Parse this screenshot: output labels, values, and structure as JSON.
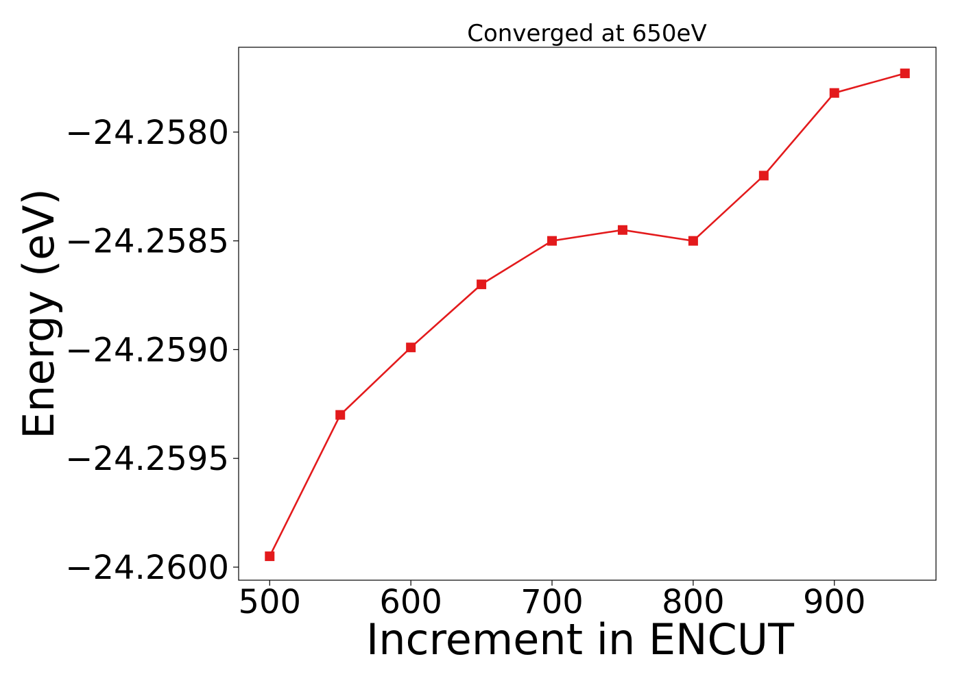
{
  "chart_data": {
    "type": "line",
    "title": "Converged at 650eV",
    "xlabel": "Increment in ENCUT",
    "ylabel": "Energy (eV)",
    "xlim": [
      478,
      972
    ],
    "ylim": [
      -24.26006,
      -24.25761
    ],
    "x_ticks": [
      500,
      600,
      700,
      800,
      900
    ],
    "x_tick_labels": [
      "500",
      "600",
      "700",
      "800",
      "900"
    ],
    "y_ticks": [
      -24.258,
      -24.2585,
      -24.259,
      -24.2595,
      -24.26
    ],
    "y_tick_labels": [
      "−24.2580",
      "−24.2585",
      "−24.2590",
      "−24.2595",
      "−24.2600"
    ],
    "grid": false,
    "legend": "none",
    "series": [
      {
        "color": "#e31a1c",
        "marker": "square",
        "x": [
          500,
          550,
          600,
          650,
          700,
          750,
          800,
          850,
          900,
          950
        ],
        "y": [
          -24.25995,
          -24.2593,
          -24.25899,
          -24.2587,
          -24.2585,
          -24.25845,
          -24.2585,
          -24.2582,
          -24.25782,
          -24.25773
        ]
      }
    ]
  }
}
